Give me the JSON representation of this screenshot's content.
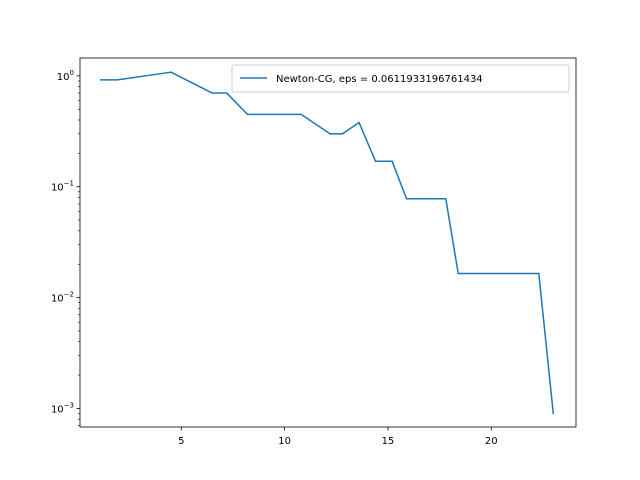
{
  "chart_data": {
    "type": "line",
    "title": "",
    "xlabel": "",
    "ylabel": "",
    "xlim": [
      0.1,
      24.1
    ],
    "ylim": [
      0.00068,
      1.45
    ],
    "yscale": "log",
    "grid": false,
    "legend_position": "top-right",
    "x_ticks": [
      5,
      10,
      15,
      20
    ],
    "y_ticks": [
      {
        "value": 0.001,
        "mantissa": "10",
        "exp": "−3"
      },
      {
        "value": 0.01,
        "mantissa": "10",
        "exp": "−2"
      },
      {
        "value": 0.1,
        "mantissa": "10",
        "exp": "−1"
      },
      {
        "value": 1,
        "mantissa": "10",
        "exp": "0"
      }
    ],
    "series": [
      {
        "name": "Newton-CG, eps = 0.0611933196761434",
        "color": "#1f77b4",
        "x": [
          1.1,
          1.9,
          4.5,
          6.5,
          7.2,
          8.2,
          10.8,
          12.2,
          12.8,
          13.6,
          14.4,
          15.2,
          15.9,
          17.8,
          18.4,
          22.3,
          23.0
        ],
        "y": [
          0.92,
          0.92,
          1.08,
          0.7,
          0.7,
          0.45,
          0.45,
          0.3,
          0.3,
          0.38,
          0.17,
          0.17,
          0.078,
          0.078,
          0.0165,
          0.0165,
          0.0009
        ]
      }
    ]
  }
}
